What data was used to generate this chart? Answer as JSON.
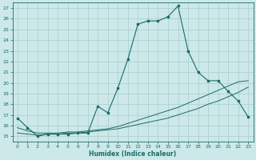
{
  "xlabel": "Humidex (Indice chaleur)",
  "bg_color": "#cce8e8",
  "grid_color": "#aacccc",
  "line_color": "#1a6b6b",
  "xlim": [
    -0.5,
    23.5
  ],
  "ylim": [
    14.5,
    27.5
  ],
  "xticks": [
    0,
    1,
    2,
    3,
    4,
    5,
    6,
    7,
    8,
    9,
    10,
    11,
    12,
    13,
    14,
    15,
    16,
    17,
    18,
    19,
    20,
    21,
    22,
    23
  ],
  "yticks": [
    15,
    16,
    17,
    18,
    19,
    20,
    21,
    22,
    23,
    24,
    25,
    26,
    27
  ],
  "curve1_x": [
    0,
    1,
    2,
    3,
    4,
    5,
    6,
    7,
    8,
    9,
    10,
    11,
    12,
    13,
    14,
    15,
    16,
    17,
    18,
    19,
    20,
    21,
    22,
    23
  ],
  "curve1_y": [
    16.7,
    15.8,
    15.0,
    15.2,
    15.2,
    15.2,
    15.3,
    15.3,
    17.8,
    17.2,
    19.5,
    22.2,
    25.5,
    25.8,
    25.8,
    26.2,
    27.2,
    23.0,
    21.0,
    20.2,
    20.2,
    19.2,
    18.3,
    16.8
  ],
  "curve2_x": [
    0,
    1,
    2,
    3,
    4,
    5,
    6,
    7,
    8,
    9,
    10,
    11,
    12,
    13,
    14,
    15,
    16,
    17,
    18,
    19,
    20,
    21,
    22,
    23
  ],
  "curve2_y": [
    15.8,
    15.5,
    15.3,
    15.3,
    15.3,
    15.4,
    15.4,
    15.5,
    15.6,
    15.7,
    15.9,
    16.2,
    16.5,
    16.8,
    17.1,
    17.4,
    17.7,
    18.1,
    18.5,
    18.9,
    19.3,
    19.7,
    20.1,
    20.2
  ],
  "curve3_x": [
    0,
    1,
    2,
    3,
    4,
    5,
    6,
    7,
    8,
    9,
    10,
    11,
    12,
    13,
    14,
    15,
    16,
    17,
    18,
    19,
    20,
    21,
    22,
    23
  ],
  "curve3_y": [
    15.3,
    15.2,
    15.1,
    15.2,
    15.2,
    15.3,
    15.3,
    15.4,
    15.5,
    15.6,
    15.7,
    15.9,
    16.1,
    16.3,
    16.5,
    16.7,
    17.0,
    17.3,
    17.6,
    18.0,
    18.3,
    18.7,
    19.1,
    19.6
  ]
}
